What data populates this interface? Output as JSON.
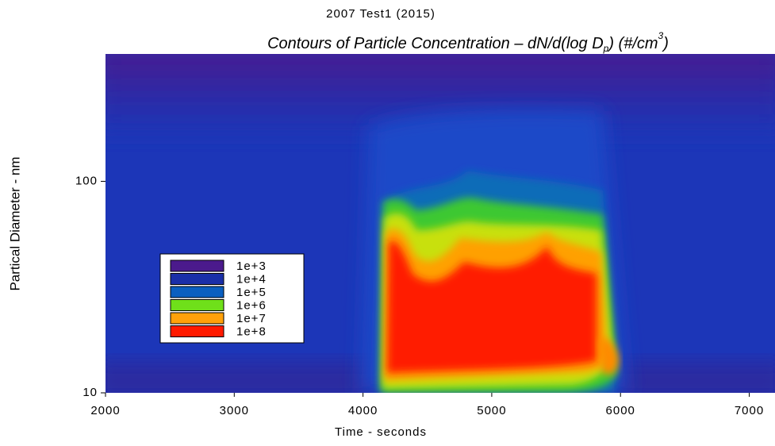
{
  "chart_data": {
    "type": "contour",
    "title": "2007 Test1 (2015)",
    "subtitle_parts": [
      "Contours  of Particle Concentration – dN/d(log D",
      "p",
      ") (#/cm",
      "3",
      ")"
    ],
    "x_label": "Time - seconds",
    "y_label": "Partical Diameter - nm",
    "xlim": [
      2000,
      7200
    ],
    "xticks": [
      2000,
      3000,
      4000,
      5000,
      6000,
      7000
    ],
    "ylim": [
      10,
      400
    ],
    "yticks": [
      10,
      100
    ],
    "log_y": true,
    "levels": [
      {
        "value": 1000,
        "label": "1e+3"
      },
      {
        "value": 10000,
        "label": "1e+4"
      },
      {
        "value": 100000,
        "label": "1e+5"
      },
      {
        "value": 1000000,
        "label": "1e+6"
      },
      {
        "value": 10000000,
        "label": "1e+7"
      },
      {
        "value": 100000000,
        "label": "1e+8"
      }
    ],
    "level_colors": [
      "#4b1a8c",
      "#1a2fa8",
      "#0a5fc0",
      "#6fe01a",
      "#ffa10a",
      "#ff1a00"
    ]
  }
}
